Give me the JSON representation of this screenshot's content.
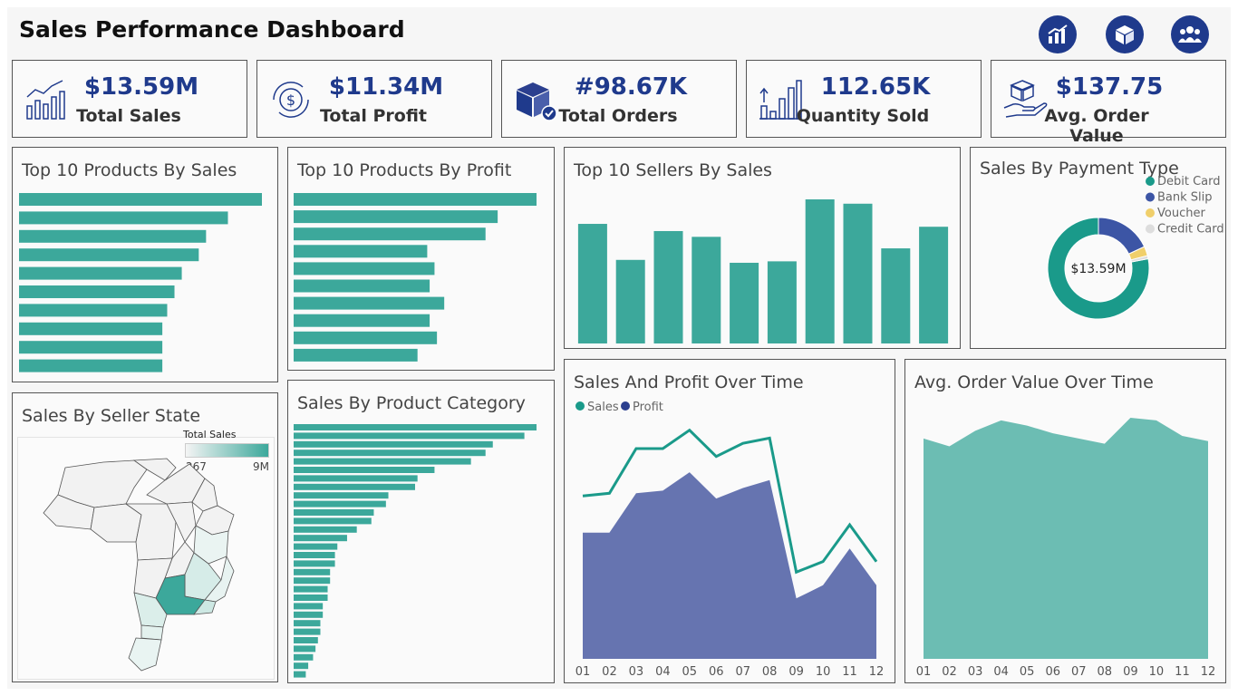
{
  "header": {
    "title": "Sales Performance Dashboard",
    "nav_icons": [
      "chart-icon",
      "box-icon",
      "people-icon"
    ]
  },
  "kpis": [
    {
      "value": "$13.59M",
      "label": "Total Sales",
      "icon": "sales-trend-icon"
    },
    {
      "value": "$11.34M",
      "label": "Total Profit",
      "icon": "dollar-cycle-icon"
    },
    {
      "value": "#98.67K",
      "label": "Total Orders",
      "icon": "package-check-icon"
    },
    {
      "value": "112.65K",
      "label": "Quantity Sold",
      "icon": "quantity-bars-icon"
    },
    {
      "value": "$137.75",
      "label": "Avg. Order Value",
      "icon": "hand-box-icon"
    }
  ],
  "panels": {
    "top_products_sales": "Top 10 Products By Sales",
    "top_products_profit": "Top 10 Products By Profit",
    "top_sellers": "Top 10 Sellers By Sales",
    "payment_type": "Sales By Payment Type",
    "seller_state": "Sales By Seller State",
    "product_category": "Sales By Product Category",
    "sales_profit_time": "Sales And Profit Over Time",
    "aov_time": "Avg. Order Value Over Time"
  },
  "map_legend": {
    "title": "Total Sales",
    "min": "267",
    "max": "9M"
  },
  "colors": {
    "teal": "#3ca89b",
    "navy": "#1f3a8c",
    "profit": "#6674b0",
    "teal_area": "#6cbdb3",
    "voucher": "#f0cf6b",
    "credit": "#dddddd"
  },
  "chart_data": [
    {
      "id": "top_products_sales",
      "type": "bar",
      "orientation": "horizontal",
      "values": [
        100,
        86,
        77,
        74,
        67,
        64,
        61,
        59,
        59,
        59
      ]
    },
    {
      "id": "top_products_profit",
      "type": "bar",
      "orientation": "horizontal",
      "values": [
        100,
        84,
        79,
        55,
        58,
        56,
        62,
        56,
        59,
        51
      ]
    },
    {
      "id": "top_sellers",
      "type": "bar",
      "values": [
        83,
        58,
        78,
        74,
        56,
        57,
        100,
        97,
        66,
        81
      ]
    },
    {
      "id": "payment_type",
      "type": "pie",
      "center_label": "$13.59M",
      "slices": [
        {
          "name": "Debit Card",
          "value": 78,
          "color": "#1a9a8a"
        },
        {
          "name": "Bank Slip",
          "value": 18,
          "color": "#3c55a5"
        },
        {
          "name": "Voucher",
          "value": 3,
          "color": "#f0cf6b"
        },
        {
          "name": "Credit Card",
          "value": 1,
          "color": "#dddddd"
        }
      ]
    },
    {
      "id": "product_category",
      "type": "bar",
      "orientation": "horizontal",
      "values": [
        100,
        95,
        82,
        79,
        73,
        58,
        51,
        50,
        39,
        38,
        33,
        32,
        26,
        22,
        18,
        17,
        17,
        15,
        15,
        14,
        14,
        12,
        12,
        11,
        11,
        10,
        9,
        8,
        6,
        5
      ]
    },
    {
      "id": "sales_profit_time",
      "type": "area",
      "x": [
        "01",
        "02",
        "03",
        "04",
        "05",
        "06",
        "07",
        "08",
        "09",
        "10",
        "11",
        "12"
      ],
      "series": [
        {
          "name": "Sales",
          "type": "line",
          "values": [
            62,
            63,
            80,
            80,
            87,
            77,
            82,
            84,
            33,
            37,
            51,
            37
          ]
        },
        {
          "name": "Profit",
          "type": "area",
          "values": [
            48,
            48,
            63,
            64,
            71,
            61,
            65,
            68,
            23,
            28,
            42,
            28
          ]
        }
      ],
      "ylim": [
        0,
        100
      ]
    },
    {
      "id": "aov_time",
      "type": "area",
      "x": [
        "01",
        "02",
        "03",
        "04",
        "05",
        "06",
        "07",
        "08",
        "09",
        "10",
        "11",
        "12"
      ],
      "values": [
        85,
        82,
        88,
        92,
        90,
        87,
        85,
        83,
        93,
        92,
        86,
        84
      ],
      "ylim": [
        0,
        100
      ]
    }
  ]
}
